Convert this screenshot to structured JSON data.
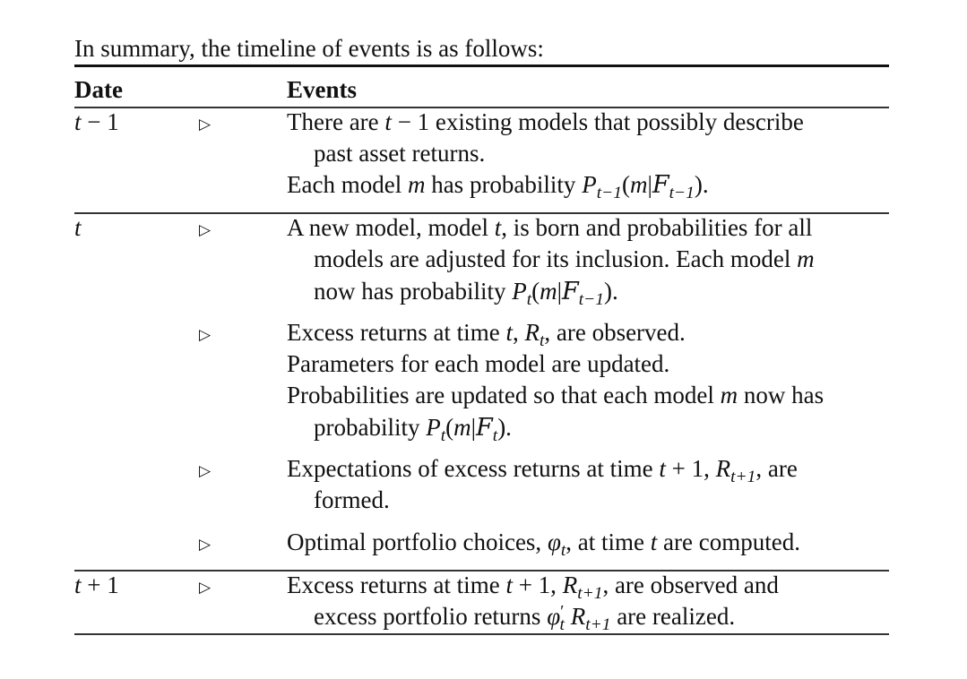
{
  "intro": "In summary, the timeline of events is as follows:",
  "headers": {
    "date": "Date",
    "events": "Events"
  },
  "marker": "▷",
  "dates": {
    "t_minus_1": "t − 1",
    "t": "t",
    "t_plus_1": "t + 1"
  },
  "text": {
    "r1_l1": "There are t − 1 existing models that possibly describe",
    "r1_l2": "past asset returns.",
    "r1_l3": "Each model m has probability P_{t−1}(m|F_{t−1}).",
    "r2_l1": "A new model, model t, is born and probabilities for all",
    "r2_l2": "models are adjusted for its inclusion. Each model m",
    "r2_l3": "now has probability P_t(m|F_{t−1}).",
    "r3_l1": "Excess returns at time t, R_t, are observed.",
    "r3_l2": "Parameters for each model are updated.",
    "r3_l3": "Probabilities are updated so that each model m now has",
    "r3_l4": "probability P_t(m|F_t).",
    "r4_l1": "Expectations of excess returns at time t + 1, R_{t+1}, are",
    "r4_l2": "formed.",
    "r5_l1": "Optimal portfolio choices, φ_t, at time t are computed.",
    "r6_l1": "Excess returns at time t + 1, R_{t+1}, are observed and",
    "r6_l2": "excess portfolio returns φ′_t R_{t+1} are realized."
  }
}
